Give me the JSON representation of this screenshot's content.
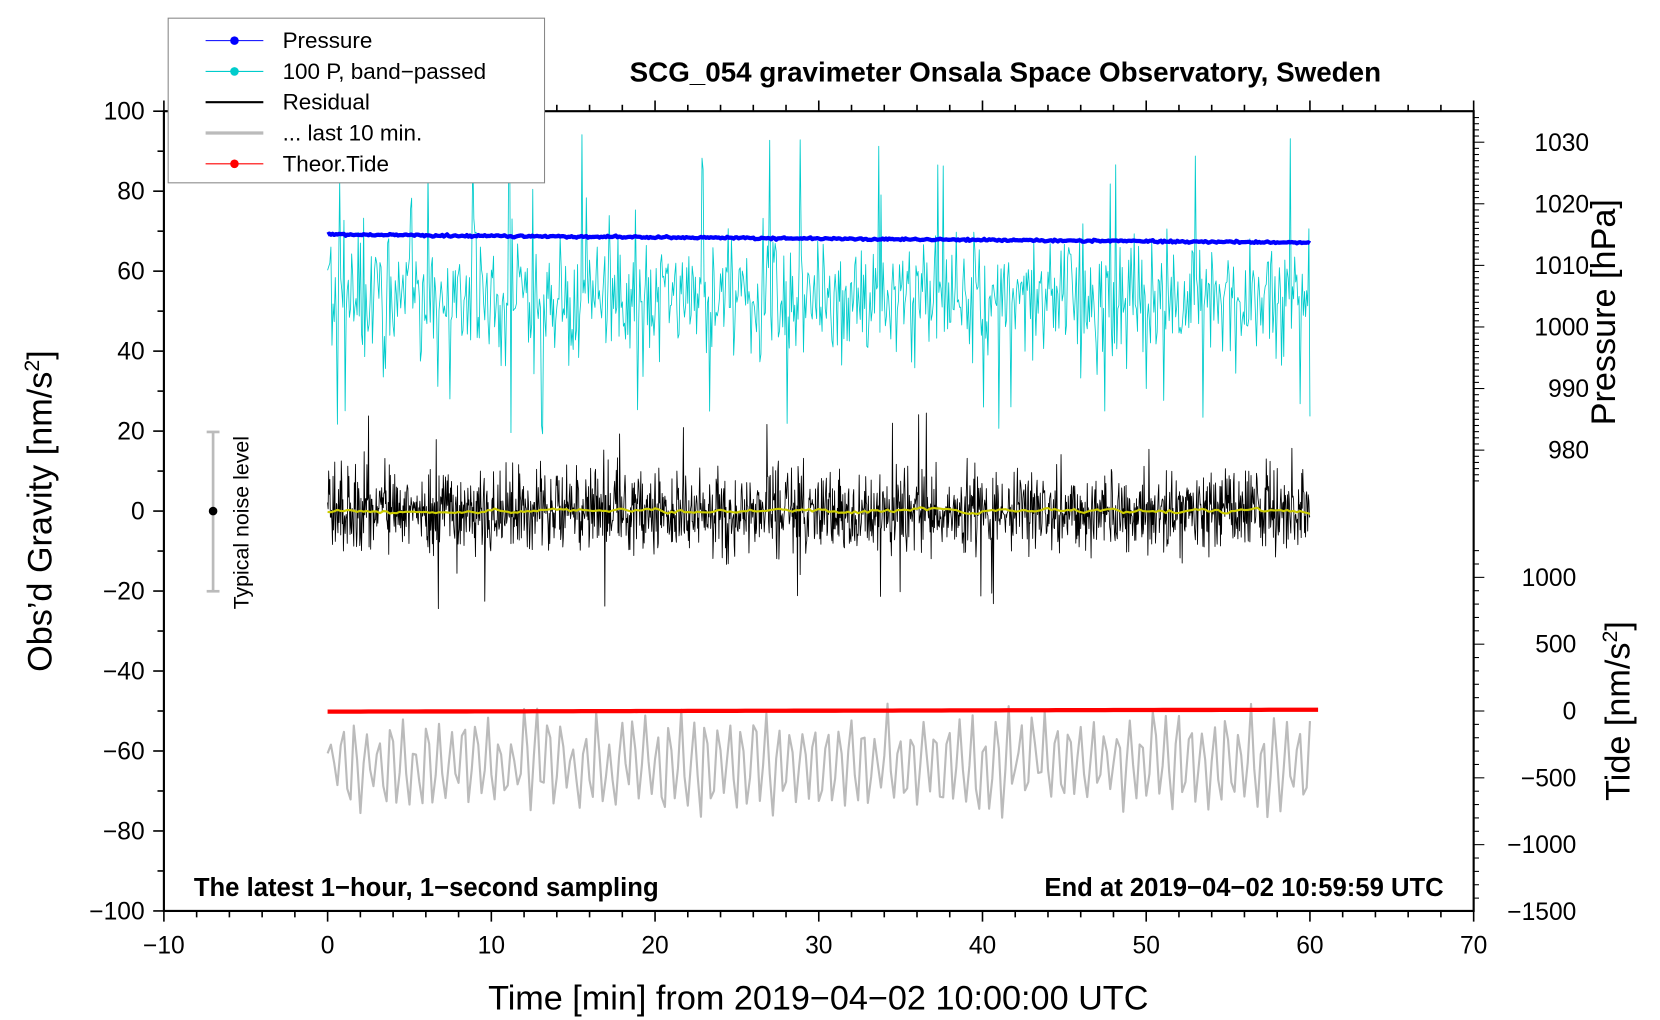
{
  "chart_data": {
    "type": "line",
    "title": "SCG_054 gravimeter Onsala Space Observatory, Sweden",
    "xlabel": "Time [min] from 2019−04−02 10:00:00 UTC",
    "ylabel_left": "Obs’d Gravity [nm/s²]",
    "ylabel_left_text": "Obs’d Gravity [nm/s",
    "ylabel_right_top": "Pressure [hPa]",
    "ylabel_right_bottom_text": "Tide [nm/s",
    "sup2": "2",
    "bracket": "]",
    "xlim": [
      -10,
      70
    ],
    "ylim_left": [
      -100,
      100
    ],
    "ylim_pressure_labels": [
      980,
      1030
    ],
    "ylim_tide": [
      -1500,
      1000
    ],
    "xticks": [
      "−10",
      "0",
      "10",
      "20",
      "30",
      "40",
      "50",
      "60",
      "70"
    ],
    "xtick_values": [
      -10,
      0,
      10,
      20,
      30,
      40,
      50,
      60,
      70
    ],
    "yticks_left": [
      "100",
      "80",
      "60",
      "40",
      "20",
      "0",
      "−20",
      "−40",
      "−60",
      "−80",
      "−100"
    ],
    "ytick_left_values": [
      100,
      80,
      60,
      40,
      20,
      0,
      -20,
      -40,
      -60,
      -80,
      -100
    ],
    "yticks_pressure": [
      "1030",
      "1020",
      "1010",
      "1000",
      "990",
      "980"
    ],
    "ytick_pressure_values": [
      1030,
      1020,
      1010,
      1000,
      990,
      980
    ],
    "yticks_tide": [
      "1000",
      "500",
      "0",
      "−500",
      "−1000",
      "−1500"
    ],
    "ytick_tide_values": [
      1000,
      500,
      0,
      -500,
      -1000,
      -1500
    ],
    "annotation_left": "The latest 1−hour, 1−second sampling",
    "annotation_right": "End at 2019−04−02 10:59:59 UTC",
    "noise_label": "Typical noise level",
    "noise_bar": {
      "x": -7,
      "center": 0,
      "half_range": 20
    },
    "legend": {
      "placement": "top-left",
      "entries": [
        {
          "label": "Pressure",
          "color": "#0000ff",
          "marker": true
        },
        {
          "label": "100 P, band−passed",
          "color": "#00cccc",
          "marker": true
        },
        {
          "label": "Residual",
          "color": "#000000",
          "marker": false
        },
        {
          "label": "... last 10 min.",
          "color": "#bbbbbb",
          "marker": false
        },
        {
          "label": "Theor.Tide",
          "color": "#ff0000",
          "marker": true
        }
      ]
    },
    "series": [
      {
        "name": "Pressure",
        "axis": "pressure",
        "unit": "hPa",
        "x_range": [
          0,
          60
        ],
        "start": 1015.0,
        "end": 1013.7,
        "color": "#0000ff"
      },
      {
        "name": "100 P, band-passed",
        "axis": "gravity",
        "x_range": [
          0,
          60
        ],
        "mean": 53,
        "spread": 9,
        "spike_max": 95,
        "spike_min": 18,
        "color": "#00cccc"
      },
      {
        "name": "Residual",
        "axis": "gravity",
        "x_range": [
          0,
          60
        ],
        "mean": 0,
        "spread": 7,
        "extreme": 25,
        "color": "#000000"
      },
      {
        "name": "Residual smoothed",
        "axis": "gravity",
        "x_range": [
          0,
          60
        ],
        "mean": 0,
        "spread": 0.8,
        "color": "#cccc00"
      },
      {
        "name": "... last 10 min.",
        "axis": "gravity",
        "x_range": [
          0,
          60
        ],
        "mean": -63,
        "spread": 9,
        "extreme_min": -86,
        "extreme_max": -41,
        "color": "#bbbbbb"
      },
      {
        "name": "Theor.Tide",
        "axis": "tide",
        "unit": "nm/s²",
        "x_range": [
          0,
          60.5
        ],
        "start": -5,
        "end": 10,
        "color": "#ff0000"
      }
    ]
  }
}
